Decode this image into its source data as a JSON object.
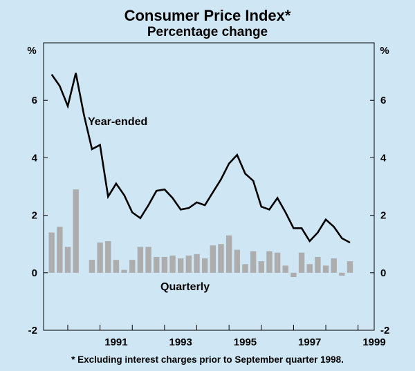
{
  "chart_data": {
    "type": "line+bar",
    "title": "Consumer Price Index*",
    "subtitle": "Percentage change",
    "y_unit_left": "%",
    "y_unit_right": "%",
    "ylim": [
      -2,
      8
    ],
    "yticks": [
      -2,
      0,
      2,
      4,
      6
    ],
    "ytick_labels": [
      "-2",
      "0",
      "2",
      "4",
      "6"
    ],
    "x_range": [
      1989.25,
      1999.5
    ],
    "xticks": [
      1991,
      1993,
      1995,
      1997,
      1999
    ],
    "xtick_labels": [
      "1991",
      "1993",
      "1995",
      "1997",
      "1999"
    ],
    "series": [
      {
        "name": "Year-ended",
        "kind": "line",
        "color": "#000000",
        "label": "Year-ended",
        "x": [
          1989.5,
          1989.75,
          1990.0,
          1990.25,
          1990.5,
          1990.75,
          1991.0,
          1991.25,
          1991.5,
          1991.75,
          1992.0,
          1992.25,
          1992.5,
          1992.75,
          1993.0,
          1993.25,
          1993.5,
          1993.75,
          1994.0,
          1994.25,
          1994.5,
          1994.75,
          1995.0,
          1995.25,
          1995.5,
          1995.75,
          1996.0,
          1996.25,
          1996.5,
          1996.75,
          1997.0,
          1997.25,
          1997.5,
          1997.75,
          1998.0,
          1998.25,
          1998.5,
          1998.75,
          1999.0
        ],
        "values": [
          6.9,
          6.5,
          5.8,
          6.95,
          5.5,
          4.3,
          4.45,
          2.65,
          3.1,
          2.7,
          2.1,
          1.9,
          2.35,
          2.85,
          2.9,
          2.6,
          2.2,
          2.25,
          2.45,
          2.35,
          2.8,
          3.25,
          3.8,
          4.1,
          3.45,
          3.2,
          2.3,
          2.2,
          2.6,
          2.1,
          1.55,
          1.55,
          1.1,
          1.4,
          1.85,
          1.6,
          1.2,
          1.05,
          null
        ]
      },
      {
        "name": "Quarterly",
        "kind": "bar",
        "color": "#adadad",
        "label": "Quarterly",
        "x": [
          1989.5,
          1989.75,
          1990.0,
          1990.25,
          1990.5,
          1990.75,
          1991.0,
          1991.25,
          1991.5,
          1991.75,
          1992.0,
          1992.25,
          1992.5,
          1992.75,
          1993.0,
          1993.25,
          1993.5,
          1993.75,
          1994.0,
          1994.25,
          1994.5,
          1994.75,
          1995.0,
          1995.25,
          1995.5,
          1995.75,
          1996.0,
          1996.25,
          1996.5,
          1996.75,
          1997.0,
          1997.25,
          1997.5,
          1997.75,
          1998.0,
          1998.25,
          1998.5,
          1998.75,
          1999.0
        ],
        "values": [
          1.4,
          1.6,
          0.9,
          2.9,
          0.0,
          0.45,
          1.05,
          1.1,
          0.45,
          0.1,
          0.45,
          0.9,
          0.9,
          0.55,
          0.55,
          0.6,
          0.5,
          0.6,
          0.65,
          0.5,
          0.95,
          1.0,
          1.3,
          0.8,
          0.3,
          0.75,
          0.4,
          0.75,
          0.7,
          0.25,
          -0.15,
          0.7,
          0.3,
          0.55,
          0.25,
          0.5,
          -0.1,
          0.4,
          null
        ]
      }
    ],
    "footnote": "* Excluding interest charges prior to September quarter 1998."
  }
}
